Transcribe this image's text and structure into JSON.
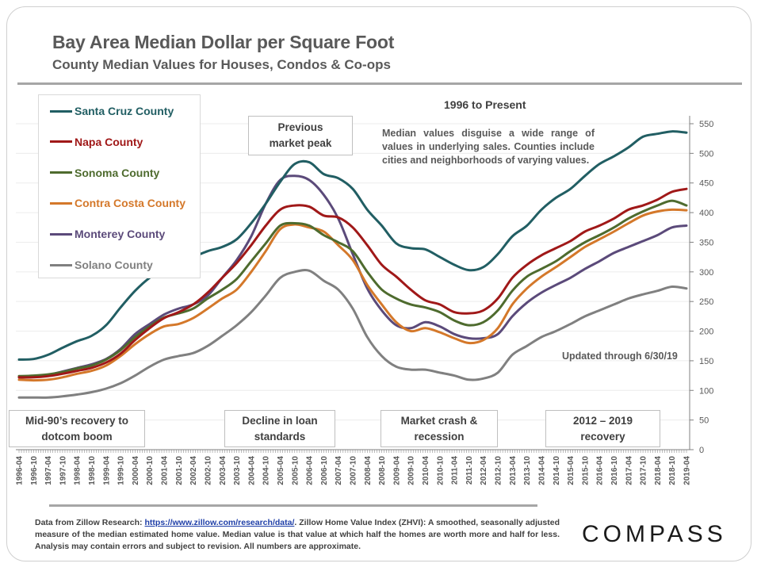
{
  "header": {
    "title": "Bay Area Median Dollar per Square Foot",
    "subtitle": "County Median Values for Houses, Condos & Co-ops"
  },
  "annotations": {
    "range_label": "1996 to Present",
    "note": "Median values disguise a wide range of values in underlying sales. Counties include cities and neighborhoods of varying values.",
    "updated": "Updated through 6/30/19",
    "previous_peak": "Previous market peak",
    "mid90s": "Mid-90’s recovery to dotcom boom",
    "loan_standards": "Decline in loan standards",
    "crash": "Market crash & recession",
    "recovery": "2012 – 2019 recovery"
  },
  "footer": {
    "prefix": "Data from Zillow Research: ",
    "link_text": "https://www.zillow.com/research/data/",
    "suffix": ". Zillow Home Value Index (ZHVI): A smoothed, seasonally adjusted measure of the median estimated home value. Median value is that value at which half the homes are worth more and half for less. Analysis may contain errors and subject to revision. All numbers are approximate."
  },
  "logo": "COMPASS",
  "chart_data": {
    "type": "line",
    "title": "Bay Area Median Dollar per Square Foot",
    "subtitle": "County Median Values for Houses, Condos & Co-ops",
    "xlabel": "",
    "ylabel": "",
    "ylim": [
      0,
      550
    ],
    "yticks": [
      0,
      50,
      100,
      150,
      200,
      250,
      300,
      350,
      400,
      450,
      500,
      550
    ],
    "y_axis_side": "right",
    "grid": true,
    "legend_position": "top-left",
    "x": [
      "1996-04",
      "1996-10",
      "1997-04",
      "1997-10",
      "1998-04",
      "1998-10",
      "1999-04",
      "1999-10",
      "2000-04",
      "2000-10",
      "2001-04",
      "2001-10",
      "2002-04",
      "2002-10",
      "2003-04",
      "2003-10",
      "2004-04",
      "2004-10",
      "2005-04",
      "2005-10",
      "2006-04",
      "2006-10",
      "2007-04",
      "2007-10",
      "2008-04",
      "2008-10",
      "2009-04",
      "2009-10",
      "2010-04",
      "2010-10",
      "2011-04",
      "2011-10",
      "2012-04",
      "2012-10",
      "2013-04",
      "2013-10",
      "2014-04",
      "2014-10",
      "2015-04",
      "2015-10",
      "2016-04",
      "2016-10",
      "2017-04",
      "2017-10",
      "2018-04",
      "2018-10",
      "2019-04"
    ],
    "series": [
      {
        "name": "Santa Cruz County",
        "color": "#215e63",
        "values": [
          152,
          153,
          160,
          172,
          183,
          192,
          210,
          240,
          268,
          290,
          305,
          315,
          325,
          335,
          342,
          355,
          382,
          415,
          452,
          482,
          485,
          465,
          458,
          440,
          405,
          378,
          348,
          340,
          338,
          325,
          312,
          303,
          308,
          330,
          360,
          378,
          405,
          425,
          440,
          462,
          482,
          495,
          510,
          528,
          533,
          537,
          535
        ]
      },
      {
        "name": "Napa County",
        "color": "#a01818",
        "values": [
          122,
          122,
          124,
          128,
          133,
          138,
          147,
          162,
          185,
          205,
          222,
          232,
          245,
          265,
          290,
          315,
          345,
          378,
          405,
          412,
          410,
          395,
          392,
          375,
          345,
          312,
          292,
          270,
          252,
          245,
          232,
          230,
          235,
          255,
          290,
          312,
          328,
          340,
          352,
          368,
          378,
          390,
          405,
          412,
          422,
          435,
          440
        ]
      },
      {
        "name": "Sonoma County",
        "color": "#4e6b2e",
        "values": [
          124,
          125,
          127,
          131,
          137,
          142,
          152,
          168,
          190,
          208,
          223,
          230,
          238,
          255,
          270,
          288,
          318,
          348,
          378,
          382,
          378,
          362,
          350,
          335,
          300,
          270,
          255,
          245,
          240,
          232,
          218,
          210,
          215,
          235,
          268,
          292,
          305,
          318,
          335,
          350,
          362,
          375,
          390,
          402,
          412,
          420,
          412
        ]
      },
      {
        "name": "Contra Costa County",
        "color": "#d4782a",
        "values": [
          118,
          117,
          118,
          122,
          128,
          133,
          142,
          158,
          178,
          195,
          208,
          212,
          222,
          238,
          255,
          270,
          300,
          335,
          372,
          380,
          375,
          368,
          345,
          320,
          278,
          245,
          215,
          200,
          205,
          198,
          188,
          180,
          185,
          205,
          245,
          272,
          292,
          308,
          325,
          342,
          355,
          368,
          382,
          395,
          402,
          405,
          404
        ]
      },
      {
        "name": "Monterey County",
        "color": "#5b4a7a",
        "values": [
          122,
          123,
          126,
          132,
          138,
          144,
          153,
          170,
          195,
          212,
          228,
          238,
          245,
          260,
          290,
          320,
          360,
          415,
          455,
          462,
          455,
          430,
          390,
          330,
          272,
          235,
          210,
          205,
          215,
          208,
          195,
          188,
          188,
          195,
          225,
          248,
          265,
          278,
          290,
          305,
          318,
          332,
          342,
          352,
          362,
          375,
          378
        ]
      },
      {
        "name": "Solano County",
        "color": "#808080",
        "values": [
          88,
          88,
          88,
          90,
          93,
          97,
          103,
          112,
          125,
          140,
          152,
          158,
          163,
          175,
          192,
          210,
          232,
          260,
          290,
          300,
          302,
          285,
          270,
          238,
          190,
          158,
          140,
          135,
          135,
          130,
          125,
          118,
          120,
          130,
          160,
          175,
          190,
          200,
          212,
          225,
          235,
          245,
          255,
          262,
          268,
          275,
          272
        ]
      }
    ]
  }
}
